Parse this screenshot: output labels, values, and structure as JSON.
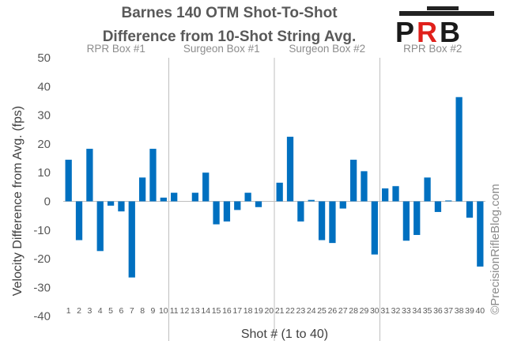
{
  "chart_data": {
    "type": "bar",
    "title_lines": [
      "Barnes 140 OTM Shot-To-Shot",
      "Difference from 10-Shot String Avg."
    ],
    "xlabel": "Shot # (1 to 40)",
    "ylabel": "Velocity Difference from Avg. (fps)",
    "ylim": [
      -50,
      50
    ],
    "yticks": [
      50,
      40,
      30,
      20,
      10,
      0,
      -10,
      -20,
      -30,
      -40,
      -50
    ],
    "grid": "vertical separators between groups",
    "bar_color": "#0070C0",
    "categories": [
      "1",
      "2",
      "3",
      "4",
      "5",
      "6",
      "7",
      "8",
      "9",
      "10",
      "11",
      "12",
      "13",
      "14",
      "15",
      "16",
      "17",
      "18",
      "19",
      "20",
      "21",
      "22",
      "23",
      "24",
      "25",
      "26",
      "27",
      "28",
      "29",
      "30",
      "31",
      "32",
      "33",
      "34",
      "35",
      "36",
      "37",
      "38",
      "39",
      "40"
    ],
    "values": [
      14.5,
      -13.5,
      18.3,
      -17.3,
      -1.5,
      -3.5,
      -26.5,
      8.3,
      18.3,
      1.3,
      3.0,
      0,
      3.0,
      10.0,
      -8.0,
      -7.0,
      -3.0,
      3.0,
      -2.0,
      0,
      6.5,
      22.5,
      -7.0,
      0.5,
      -13.5,
      -14.5,
      -2.5,
      14.5,
      10.5,
      -18.5,
      4.5,
      5.3,
      -13.7,
      -11.7,
      8.3,
      -3.7,
      0.3,
      36.3,
      -5.7,
      -22.7
    ],
    "groups": [
      {
        "label": "RPR Box #1",
        "first": 1,
        "last": 10
      },
      {
        "label": "Surgeon Box #1",
        "first": 11,
        "last": 20
      },
      {
        "label": "Surgeon Box #2",
        "first": 21,
        "last": 30
      },
      {
        "label": "RPR Box #2",
        "first": 31,
        "last": 40
      }
    ]
  },
  "logo": {
    "letters": [
      "P",
      "R",
      "B"
    ]
  },
  "watermark": "©PrecisionRifleBlog.com"
}
